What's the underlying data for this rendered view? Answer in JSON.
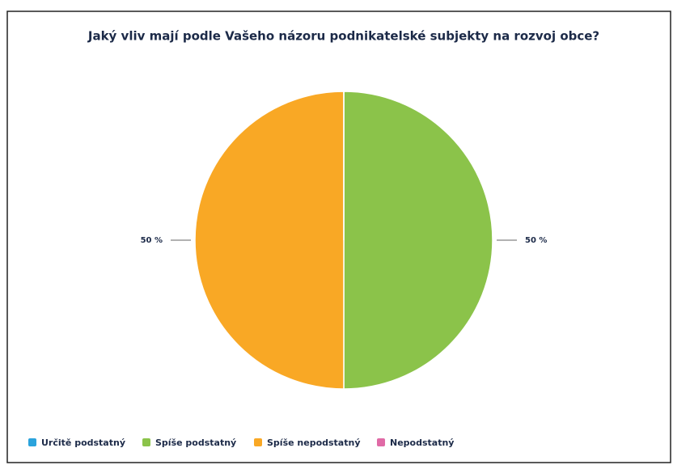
{
  "chart_data": {
    "type": "pie",
    "title": "Jaký vliv mají podle Vašeho názoru podnikatelské subjekty na rozvoj obce?",
    "categories": [
      "Určitě podstatný",
      "Spíše podstatný",
      "Spíše nepodstatný",
      "Nepodstatný"
    ],
    "values": [
      0,
      50,
      50,
      0
    ],
    "value_labels": [
      null,
      "50 %",
      "50 %",
      null
    ],
    "colors": [
      "#2ba3dc",
      "#8bc34a",
      "#f9a825",
      "#e06aa6"
    ],
    "legend": "bottom"
  }
}
